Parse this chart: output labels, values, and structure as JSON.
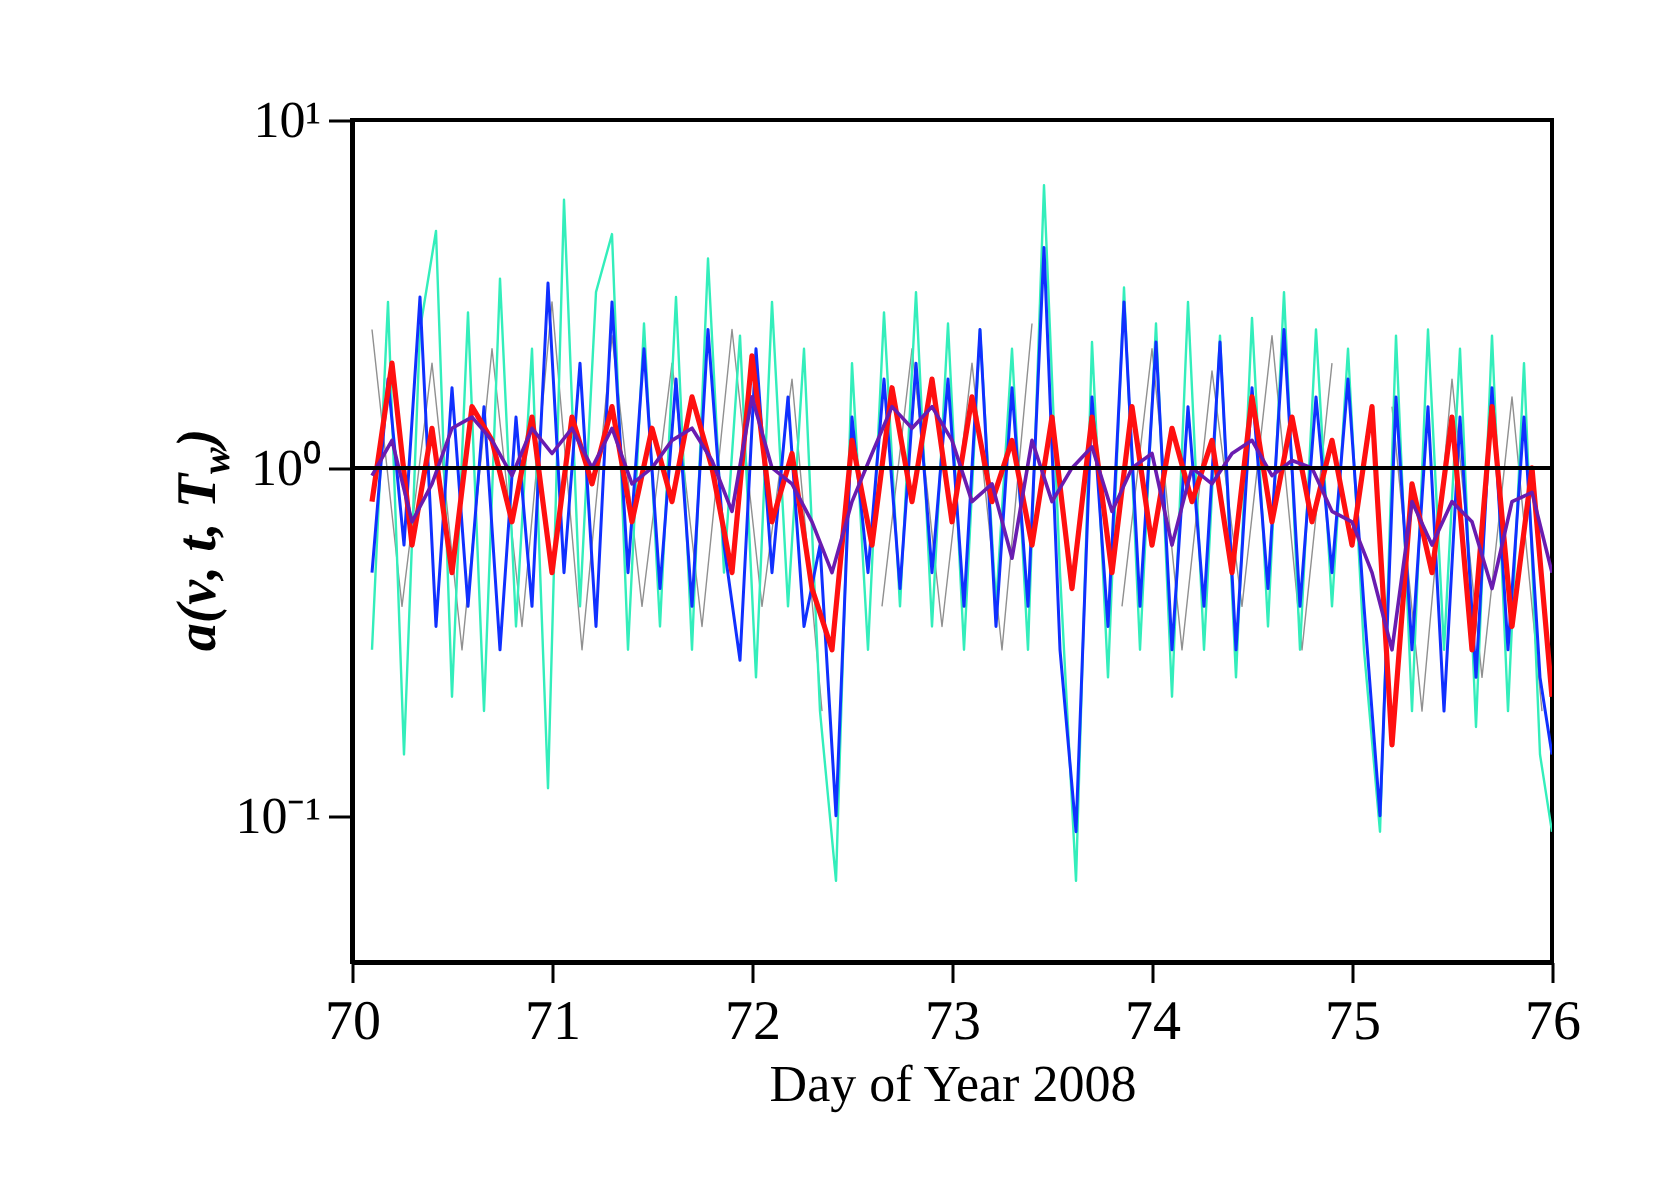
{
  "chart_data": {
    "type": "line",
    "xlabel": "Day of Year 2008",
    "ylabel": "a(ν, t, T$_{w}$)",
    "log": "y",
    "grid": false,
    "xlim": [
      70,
      76
    ],
    "xticks": [
      70,
      71,
      72,
      73,
      74,
      75,
      76
    ],
    "ylim": [
      0.038,
      10
    ],
    "yticks": [
      {
        "value": 0.1,
        "label": "10⁻¹"
      },
      {
        "value": 1,
        "label": "10⁰"
      },
      {
        "value": 10,
        "label": "10¹"
      }
    ],
    "ref_lines": [
      {
        "axis": "y",
        "value": 1,
        "color": "#000000"
      }
    ],
    "series": [
      {
        "color": "#909090",
        "x": [
          70.1,
          70.25,
          70.4,
          70.55,
          70.7,
          70.85,
          71.0,
          71.15,
          71.3,
          71.45,
          71.6,
          71.75,
          71.9,
          72.05,
          72.2,
          72.35,
          72.5,
          72.65,
          72.8,
          72.95,
          73.1,
          73.25,
          73.4,
          73.55,
          73.7,
          73.85,
          74.0,
          74.15,
          74.3,
          74.45,
          74.6,
          74.75,
          74.9,
          75.05,
          75.2,
          75.35,
          75.5,
          75.65,
          75.8,
          75.95
        ],
        "values": [
          2.5,
          0.4,
          2.0,
          0.3,
          2.2,
          0.35,
          3.0,
          0.3,
          2.4,
          0.4,
          2.0,
          0.35,
          2.5,
          0.4,
          1.8,
          0.2,
          null,
          0.4,
          2.2,
          0.35,
          2.0,
          0.3,
          2.6,
          null,
          null,
          0.4,
          2.2,
          0.3,
          1.9,
          0.4,
          2.4,
          0.3,
          2.0,
          null,
          1.5,
          0.2,
          1.8,
          0.25,
          1.6,
          0.2
        ]
      },
      {
        "color": "#33eebb",
        "x": [
          70.1,
          70.18,
          70.26,
          70.34,
          70.42,
          70.5,
          70.58,
          70.66,
          70.74,
          70.82,
          70.9,
          70.98,
          71.06,
          71.14,
          71.22,
          71.3,
          71.38,
          71.46,
          71.54,
          71.62,
          71.7,
          71.78,
          71.86,
          71.94,
          72.02,
          72.1,
          72.18,
          72.26,
          72.34,
          72.42,
          72.5,
          72.58,
          72.66,
          72.74,
          72.82,
          72.9,
          72.98,
          73.06,
          73.14,
          73.22,
          73.3,
          73.38,
          73.46,
          73.54,
          73.62,
          73.7,
          73.78,
          73.86,
          73.94,
          74.02,
          74.1,
          74.18,
          74.26,
          74.34,
          74.42,
          74.5,
          74.58,
          74.66,
          74.74,
          74.82,
          74.9,
          74.98,
          75.06,
          75.14,
          75.22,
          75.3,
          75.38,
          75.46,
          75.54,
          75.62,
          75.7,
          75.78,
          75.86,
          75.94,
          76.0
        ],
        "values": [
          0.3,
          3.0,
          0.15,
          2.5,
          4.8,
          0.22,
          2.8,
          0.2,
          3.5,
          0.35,
          2.2,
          0.12,
          5.9,
          0.4,
          3.2,
          4.7,
          0.3,
          2.6,
          0.35,
          3.1,
          0.3,
          4.0,
          0.5,
          2.4,
          0.25,
          3.0,
          0.4,
          2.2,
          0.2,
          0.065,
          2.0,
          0.3,
          2.8,
          0.4,
          3.2,
          0.35,
          2.6,
          0.3,
          2.5,
          0.4,
          2.2,
          0.3,
          6.5,
          0.5,
          0.065,
          2.3,
          0.25,
          3.3,
          0.3,
          2.6,
          0.22,
          3.0,
          0.3,
          2.4,
          0.25,
          2.7,
          0.35,
          3.2,
          0.3,
          2.5,
          0.4,
          2.2,
          0.3,
          0.09,
          2.4,
          0.2,
          2.5,
          0.3,
          2.2,
          0.18,
          2.4,
          0.2,
          2.0,
          0.15,
          0.09
        ]
      },
      {
        "color": "#1030ff",
        "x": [
          70.1,
          70.18,
          70.26,
          70.34,
          70.42,
          70.5,
          70.58,
          70.66,
          70.74,
          70.82,
          70.9,
          70.98,
          71.06,
          71.14,
          71.22,
          71.3,
          71.38,
          71.46,
          71.54,
          71.62,
          71.7,
          71.78,
          71.86,
          71.94,
          72.02,
          72.1,
          72.18,
          72.26,
          72.34,
          72.42,
          72.5,
          72.58,
          72.66,
          72.74,
          72.82,
          72.9,
          72.98,
          73.06,
          73.14,
          73.22,
          73.3,
          73.38,
          73.46,
          73.54,
          73.62,
          73.7,
          73.78,
          73.86,
          73.94,
          74.02,
          74.1,
          74.18,
          74.26,
          74.34,
          74.42,
          74.5,
          74.58,
          74.66,
          74.74,
          74.82,
          74.9,
          74.98,
          75.06,
          75.14,
          75.22,
          75.3,
          75.38,
          75.46,
          75.54,
          75.62,
          75.7,
          75.78,
          75.86,
          75.94,
          76.0
        ],
        "values": [
          0.5,
          1.8,
          0.6,
          3.1,
          0.35,
          1.7,
          0.4,
          1.5,
          0.3,
          1.4,
          0.4,
          3.4,
          0.5,
          2.0,
          0.35,
          3.0,
          0.5,
          2.2,
          0.45,
          1.8,
          0.4,
          2.5,
          0.6,
          0.28,
          2.2,
          0.5,
          1.6,
          0.35,
          0.6,
          0.1,
          1.4,
          0.5,
          1.8,
          0.45,
          2.0,
          0.5,
          1.8,
          0.4,
          2.5,
          0.35,
          1.7,
          0.4,
          4.3,
          0.3,
          0.09,
          1.6,
          0.35,
          3.0,
          0.4,
          2.3,
          0.3,
          1.5,
          0.4,
          2.3,
          0.3,
          1.7,
          0.45,
          2.5,
          0.4,
          1.6,
          0.5,
          1.8,
          0.4,
          0.1,
          1.6,
          0.3,
          1.5,
          0.2,
          1.4,
          0.25,
          1.7,
          0.3,
          1.4,
          0.25,
          0.15
        ]
      },
      {
        "color": "#ff1010",
        "x": [
          70.1,
          70.2,
          70.3,
          70.4,
          70.5,
          70.6,
          70.7,
          70.8,
          70.9,
          71.0,
          71.1,
          71.2,
          71.3,
          71.4,
          71.5,
          71.6,
          71.7,
          71.8,
          71.9,
          72.0,
          72.1,
          72.2,
          72.3,
          72.4,
          72.5,
          72.6,
          72.7,
          72.8,
          72.9,
          73.0,
          73.1,
          73.2,
          73.3,
          73.4,
          73.5,
          73.6,
          73.7,
          73.8,
          73.9,
          74.0,
          74.1,
          74.2,
          74.3,
          74.4,
          74.5,
          74.6,
          74.7,
          74.8,
          74.9,
          75.0,
          75.1,
          75.2,
          75.3,
          75.4,
          75.5,
          75.6,
          75.7,
          75.8,
          75.9,
          76.0
        ],
        "values": [
          0.8,
          2.0,
          0.6,
          1.3,
          0.5,
          1.5,
          1.2,
          0.7,
          1.4,
          0.5,
          1.4,
          0.9,
          1.5,
          0.7,
          1.3,
          0.8,
          1.6,
          1.0,
          0.5,
          2.1,
          0.7,
          1.1,
          0.45,
          0.3,
          1.2,
          0.6,
          1.7,
          0.8,
          1.8,
          0.7,
          1.6,
          0.8,
          1.2,
          0.6,
          1.4,
          0.45,
          1.4,
          0.5,
          1.5,
          0.6,
          1.3,
          0.8,
          1.2,
          0.5,
          1.6,
          0.7,
          1.4,
          0.7,
          1.2,
          0.6,
          1.5,
          0.16,
          0.9,
          0.5,
          1.4,
          0.3,
          1.5,
          0.35,
          1.0,
          0.22
        ]
      },
      {
        "color": "#6a1cb0",
        "x": [
          70.1,
          70.2,
          70.3,
          70.4,
          70.5,
          70.6,
          70.7,
          70.8,
          70.9,
          71.0,
          71.1,
          71.2,
          71.3,
          71.4,
          71.5,
          71.6,
          71.7,
          71.8,
          71.9,
          72.0,
          72.1,
          72.2,
          72.3,
          72.4,
          72.5,
          72.6,
          72.7,
          72.8,
          72.9,
          73.0,
          73.1,
          73.2,
          73.3,
          73.4,
          73.5,
          73.6,
          73.7,
          73.8,
          73.9,
          74.0,
          74.1,
          74.2,
          74.3,
          74.4,
          74.5,
          74.6,
          74.7,
          74.8,
          74.9,
          75.0,
          75.1,
          75.2,
          75.3,
          75.4,
          75.5,
          75.6,
          75.7,
          75.8,
          75.9,
          76.0
        ],
        "values": [
          0.95,
          1.2,
          0.7,
          0.9,
          1.3,
          1.4,
          1.2,
          0.95,
          1.3,
          1.1,
          1.3,
          1.0,
          1.3,
          0.9,
          1.0,
          1.2,
          1.3,
          1.05,
          0.75,
          1.6,
          1.0,
          0.9,
          0.7,
          0.5,
          0.8,
          1.1,
          1.5,
          1.3,
          1.5,
          1.2,
          0.8,
          0.9,
          0.55,
          1.2,
          0.8,
          1.0,
          1.15,
          0.75,
          1.0,
          1.1,
          0.6,
          1.0,
          0.9,
          1.1,
          1.2,
          0.95,
          1.05,
          1.0,
          0.75,
          0.7,
          0.5,
          0.3,
          0.8,
          0.6,
          0.8,
          0.7,
          0.45,
          0.8,
          0.85,
          0.5
        ]
      }
    ]
  }
}
